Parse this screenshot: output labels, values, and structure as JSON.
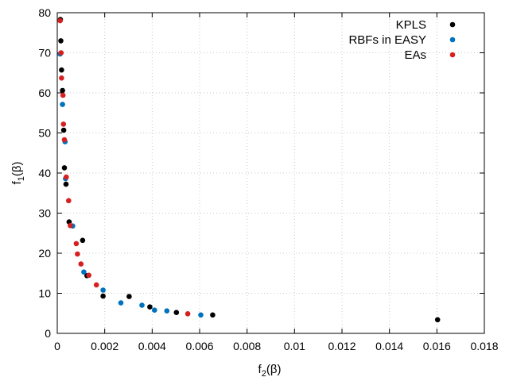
{
  "chart_data": {
    "type": "scatter",
    "title": "",
    "xlabel": "f",
    "xlabel_sub": "2",
    "xlabel_suffix": "(β)",
    "ylabel": "f",
    "ylabel_sub": "1",
    "ylabel_suffix": "(β)",
    "xlim": [
      0,
      0.018
    ],
    "ylim": [
      0,
      80
    ],
    "xticks": [
      "0",
      "0.002",
      "0.004",
      "0.006",
      "0.008",
      "0.01",
      "0.012",
      "0.014",
      "0.016",
      "0.018"
    ],
    "xtick_values": [
      0,
      0.002,
      0.004,
      0.006,
      0.008,
      0.01,
      0.012,
      0.014,
      0.016,
      0.018
    ],
    "yticks": [
      "0",
      "10",
      "20",
      "30",
      "40",
      "50",
      "60",
      "70",
      "80"
    ],
    "ytick_values": [
      0,
      10,
      20,
      30,
      40,
      50,
      60,
      70,
      80
    ],
    "grid": true,
    "legend_position": "top-right",
    "series": [
      {
        "name": "KPLS",
        "color": "#000000",
        "points": [
          [
            0.00013,
            78.3
          ],
          [
            0.00015,
            73.0
          ],
          [
            0.00018,
            65.7
          ],
          [
            0.00022,
            60.6
          ],
          [
            0.00027,
            50.7
          ],
          [
            0.0003,
            41.3
          ],
          [
            0.00037,
            37.2
          ],
          [
            0.0005,
            27.8
          ],
          [
            0.00107,
            23.2
          ],
          [
            0.00125,
            14.4
          ],
          [
            0.00193,
            9.3
          ],
          [
            0.00303,
            9.2
          ],
          [
            0.0039,
            6.6
          ],
          [
            0.00502,
            5.2
          ],
          [
            0.00655,
            4.6
          ],
          [
            0.01603,
            3.4
          ]
        ]
      },
      {
        "name": "RBFs in EASY",
        "color": "#0072bd",
        "points": [
          [
            0.00012,
            69.7
          ],
          [
            0.00022,
            57.1
          ],
          [
            0.00033,
            47.8
          ],
          [
            0.00035,
            38.6
          ],
          [
            0.00065,
            26.8
          ],
          [
            0.00112,
            15.3
          ],
          [
            0.00193,
            10.8
          ],
          [
            0.00268,
            7.6
          ],
          [
            0.00357,
            7.0
          ],
          [
            0.0041,
            5.8
          ],
          [
            0.00462,
            5.6
          ],
          [
            0.00605,
            4.6
          ]
        ]
      },
      {
        "name": "EAs",
        "color": "#d62020",
        "points": [
          [
            0.00012,
            78.0
          ],
          [
            0.00016,
            70.0
          ],
          [
            0.00018,
            63.7
          ],
          [
            0.00024,
            59.4
          ],
          [
            0.00026,
            52.2
          ],
          [
            0.0003,
            48.3
          ],
          [
            0.00038,
            39.0
          ],
          [
            0.00048,
            33.1
          ],
          [
            0.00055,
            26.9
          ],
          [
            0.0008,
            22.4
          ],
          [
            0.00085,
            19.8
          ],
          [
            0.001,
            17.3
          ],
          [
            0.00133,
            14.5
          ],
          [
            0.00165,
            12.1
          ],
          [
            0.0055,
            4.9
          ]
        ]
      }
    ]
  }
}
